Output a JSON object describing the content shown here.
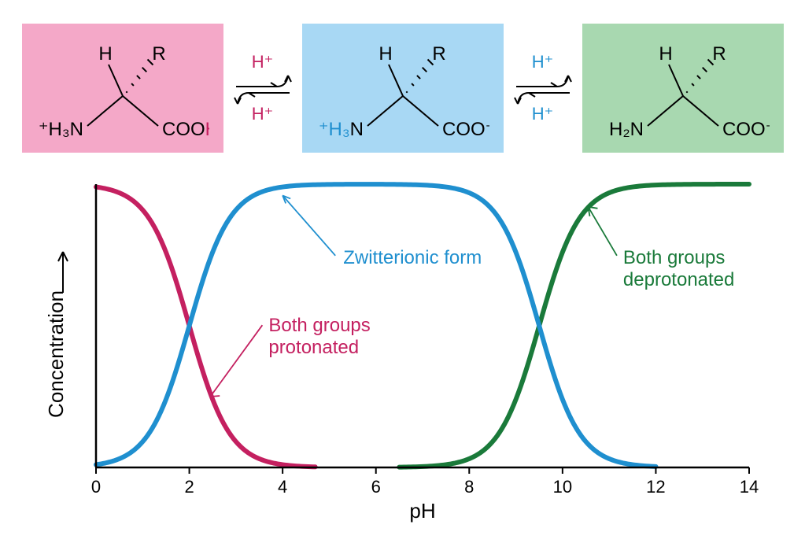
{
  "colors": {
    "protonated": "#c42060",
    "zwitterion": "#1f8fcf",
    "deprotonated": "#1a7a3a",
    "protonated_bg": "#f4a8c8",
    "zwitterion_bg": "#a8d8f4",
    "deprotonated_bg": "#a8d8b0",
    "axis": "#000000",
    "text": "#ffffff"
  },
  "structures": {
    "form1": {
      "left": "⁺H₃N",
      "right": "COOH",
      "topH": "H",
      "topR": "R"
    },
    "form2": {
      "left": "⁺H₃N",
      "right": "COO⁻",
      "topH": "H",
      "topR": "R"
    },
    "form3": {
      "left": "H₂N",
      "right": "COO⁻",
      "topH": "H",
      "topR": "R"
    }
  },
  "transitions": {
    "hplus": "H⁺"
  },
  "chart": {
    "xlabel": "pH",
    "ylabel": "Concentration",
    "xlim": [
      0,
      14
    ],
    "ylim": [
      0,
      1
    ],
    "xticks": [
      0,
      2,
      4,
      6,
      8,
      10,
      12,
      14
    ],
    "line_width": 6,
    "annotations": {
      "zwitterion": "Zwitterionic form",
      "protonated_l1": "Both groups",
      "protonated_l2": "protonated",
      "deprotonated_l1": "Both groups",
      "deprotonated_l2": "deprotonated"
    },
    "series": {
      "protonated": {
        "pka": 2.0,
        "range": [
          0,
          4.7
        ],
        "type": "falling"
      },
      "zwitterion": {
        "pka1": 2.0,
        "pka2": 9.5,
        "range": [
          0,
          12
        ],
        "type": "mid"
      },
      "deprotonated": {
        "pka": 9.5,
        "range": [
          6.5,
          14
        ],
        "type": "rising"
      }
    }
  }
}
